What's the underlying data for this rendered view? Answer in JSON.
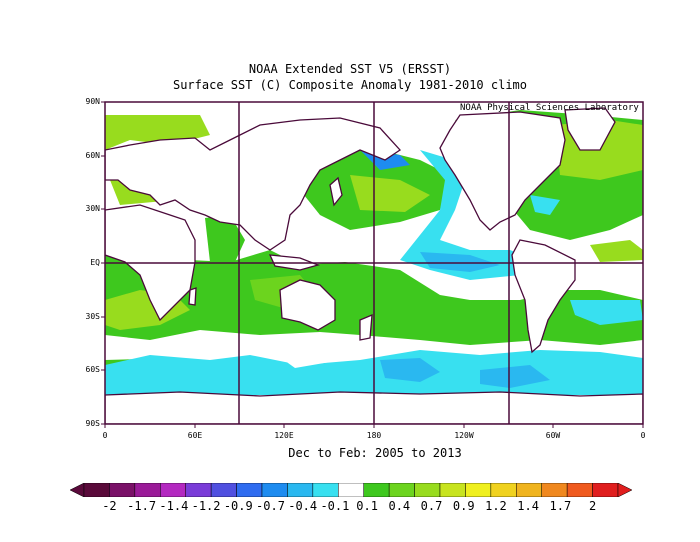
{
  "title": "NOAA Extended SST V5 (ERSST)",
  "subtitle": "Surface SST (C) Composite Anomaly 1981-2010 climo",
  "period": "Dec to Feb: 2005 to 2013",
  "credit": "NOAA Physical Sciences Laboratory",
  "lat_labels": [
    "90N",
    "60N",
    "30N",
    "EQ",
    "30S",
    "60S",
    "90S"
  ],
  "lon_labels": [
    "0",
    "60E",
    "120E",
    "180",
    "120W",
    "60W",
    "0"
  ],
  "colorbar": {
    "labels": [
      "-2",
      "-1.7",
      "-1.4",
      "-1.2",
      "-0.9",
      "-0.7",
      "-0.4",
      "-0.1",
      "0.1",
      "0.4",
      "0.7",
      "0.9",
      "1.2",
      "1.4",
      "1.7",
      "2"
    ],
    "colors": [
      "#5a0a3a",
      "#7a1168",
      "#9a1a98",
      "#b328c0",
      "#7a3cd8",
      "#5050e0",
      "#2f6cf0",
      "#1e8cf0",
      "#2ab8f0",
      "#38e0f0",
      "#ffffff",
      "#3ec81e",
      "#6cd41e",
      "#98dc1e",
      "#c8e41e",
      "#f0f01e",
      "#f0d21e",
      "#f0b41e",
      "#f0881e",
      "#f05a1e",
      "#e01e1e"
    ]
  },
  "palette": {
    "land": "#ffffff",
    "coast": "#4a0a3a",
    "green": "#3ec81e",
    "lightgreen": "#98dc1e",
    "yellow": "#c8e41e",
    "cyan": "#38e0f0",
    "lightblue": "#2ab8f0",
    "blue": "#1e8cf0"
  }
}
